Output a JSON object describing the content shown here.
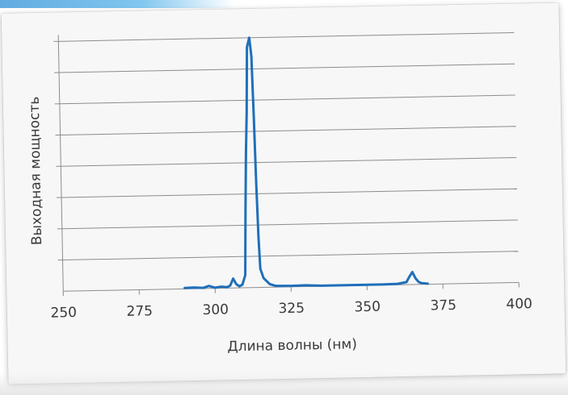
{
  "chart_data": {
    "type": "line",
    "title": "",
    "xlabel": "Длина волны (нм)",
    "ylabel": "Выходная мощность",
    "xlim": [
      250,
      400
    ],
    "ylim": [
      0,
      8
    ],
    "x_ticks": [
      "250",
      "275",
      "300",
      "325",
      "350",
      "375",
      "400"
    ],
    "y_gridlines": 8,
    "y_tick_labels_shown": false,
    "grid": true,
    "legend": "none",
    "line_color": "#1f6fba",
    "series": [
      {
        "points": [
          [
            290,
            0.03
          ],
          [
            293,
            0.04
          ],
          [
            296,
            0.02
          ],
          [
            298,
            0.08
          ],
          [
            300,
            0.02
          ],
          [
            302,
            0.05
          ],
          [
            304,
            0.03
          ],
          [
            305,
            0.08
          ],
          [
            306,
            0.3
          ],
          [
            307,
            0.12
          ],
          [
            308,
            0.05
          ],
          [
            309,
            0.1
          ],
          [
            310,
            0.4
          ],
          [
            310.5,
            2.5
          ],
          [
            311,
            4.3
          ],
          [
            311.5,
            5.6
          ],
          [
            312,
            7.7
          ],
          [
            312.8,
            8.0
          ],
          [
            313.4,
            7.4
          ],
          [
            313.8,
            5.5
          ],
          [
            314.2,
            3.3
          ],
          [
            314.6,
            1.6
          ],
          [
            315,
            0.6
          ],
          [
            316,
            0.3
          ],
          [
            318,
            0.1
          ],
          [
            320,
            0.04
          ],
          [
            325,
            0.03
          ],
          [
            330,
            0.04
          ],
          [
            335,
            0.02
          ],
          [
            340,
            0.02
          ],
          [
            345,
            0.02
          ],
          [
            350,
            0.02
          ],
          [
            355,
            0.02
          ],
          [
            360,
            0.03
          ],
          [
            363,
            0.08
          ],
          [
            364,
            0.25
          ],
          [
            365,
            0.4
          ],
          [
            366,
            0.2
          ],
          [
            367,
            0.08
          ],
          [
            368,
            0.04
          ],
          [
            370,
            0.02
          ]
        ]
      }
    ]
  }
}
